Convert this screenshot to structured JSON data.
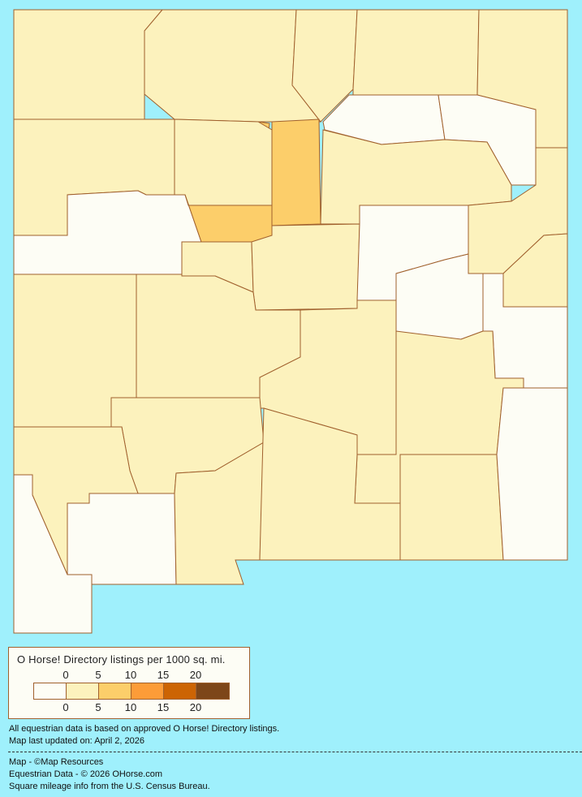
{
  "legend": {
    "title": "O Horse! Directory listings per 1000 sq. mi.",
    "ticks_top": [
      "0",
      "5",
      "10",
      "15",
      "20"
    ],
    "ticks_bottom": [
      "0",
      "5",
      "10",
      "15",
      "20"
    ],
    "classes": [
      {
        "range": "0",
        "color": "#fdfdf5"
      },
      {
        "range": "0-5",
        "color": "#fcf2bd"
      },
      {
        "range": "5-10",
        "color": "#fcce6a"
      },
      {
        "range": "10-15",
        "color": "#fc9c38"
      },
      {
        "range": "15-20",
        "color": "#cc6404"
      },
      {
        "range": "20+",
        "color": "#7d4619"
      }
    ]
  },
  "map": {
    "background": "#9ff0fc",
    "border_color": "#a0602d",
    "county_classes": [
      1,
      1,
      1,
      1,
      1,
      0,
      0,
      1,
      2,
      2,
      1,
      1,
      0,
      2,
      1,
      1,
      0,
      1,
      1,
      0,
      0,
      1,
      1,
      1,
      1,
      1,
      1,
      0,
      0,
      1,
      1,
      1,
      0
    ]
  },
  "notes": {
    "line1": "All equestrian data is based on approved O Horse! Directory listings.",
    "line2": "Map last updated on: April 2, 2026"
  },
  "credits": {
    "map": "Map - ©Map Resources",
    "data": "Equestrian Data - © 2026 OHorse.com",
    "census": "Square mileage info from the U.S. Census Bureau."
  }
}
